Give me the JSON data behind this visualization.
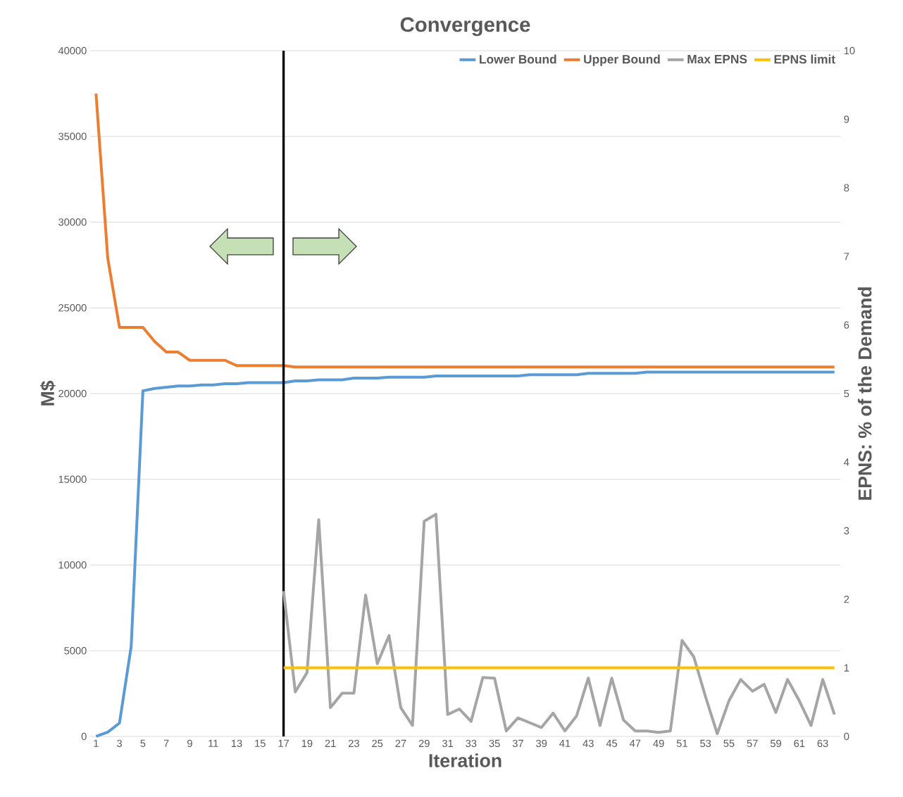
{
  "chart_data": {
    "type": "line",
    "title": "Convergence",
    "xlabel": "Iteration",
    "ylabel": "M$",
    "y2label": "EPNS: % of the Demand",
    "x": [
      1,
      2,
      3,
      4,
      5,
      6,
      7,
      8,
      9,
      10,
      11,
      12,
      13,
      14,
      15,
      16,
      17,
      18,
      19,
      20,
      21,
      22,
      23,
      24,
      25,
      26,
      27,
      28,
      29,
      30,
      31,
      32,
      33,
      34,
      35,
      36,
      37,
      38,
      39,
      40,
      41,
      42,
      43,
      44,
      45,
      46,
      47,
      48,
      49,
      50,
      51,
      52,
      53,
      54,
      55,
      56,
      57,
      58,
      59,
      60,
      61,
      62,
      63,
      64
    ],
    "xlim": [
      0.5,
      64.5
    ],
    "xticks": [
      1,
      3,
      5,
      7,
      9,
      11,
      13,
      15,
      17,
      19,
      21,
      23,
      25,
      27,
      29,
      31,
      33,
      35,
      37,
      39,
      41,
      43,
      45,
      47,
      49,
      51,
      53,
      55,
      57,
      59,
      61,
      63
    ],
    "ylim": [
      0,
      40000
    ],
    "yticks": [
      0,
      5000,
      10000,
      15000,
      20000,
      25000,
      30000,
      35000,
      40000
    ],
    "y2lim": [
      0,
      10
    ],
    "y2ticks": [
      0,
      1,
      2,
      3,
      4,
      5,
      6,
      7,
      8,
      9,
      10
    ],
    "grid": "y",
    "legend": "top right",
    "marker": "none",
    "line_style": "solid",
    "ref_lines": [
      {
        "axis": "x",
        "value": 17,
        "color": "#000000"
      }
    ],
    "series": [
      {
        "name": "Lower Bound",
        "color": "#5b9bd5",
        "values": [
          0,
          250,
          780,
          5250,
          20160,
          20300,
          20370,
          20440,
          20440,
          20500,
          20500,
          20570,
          20570,
          20640,
          20640,
          20640,
          20640,
          20740,
          20740,
          20800,
          20800,
          20800,
          20900,
          20900,
          20900,
          20950,
          20950,
          20950,
          20950,
          21030,
          21030,
          21030,
          21030,
          21030,
          21030,
          21030,
          21030,
          21100,
          21100,
          21100,
          21100,
          21100,
          21180,
          21180,
          21180,
          21180,
          21180,
          21250,
          21250,
          21250,
          21250,
          21250,
          21250,
          21250,
          21250,
          21250,
          21250,
          21250,
          21250,
          21250,
          21250,
          21250,
          21250,
          21250
        ]
      },
      {
        "name": "Upper Bound",
        "color": "#ed7d31",
        "values": [
          37500,
          27900,
          23860,
          23860,
          23860,
          23040,
          22420,
          22420,
          21940,
          21940,
          21940,
          21940,
          21630,
          21630,
          21630,
          21630,
          21630,
          21550,
          21550,
          21550,
          21550,
          21550,
          21550,
          21550,
          21550,
          21550,
          21550,
          21550,
          21550,
          21550,
          21550,
          21550,
          21550,
          21550,
          21550,
          21550,
          21550,
          21550,
          21550,
          21550,
          21550,
          21550,
          21550,
          21550,
          21550,
          21550,
          21550,
          21550,
          21550,
          21550,
          21550,
          21550,
          21550,
          21550,
          21550,
          21550,
          21550,
          21550,
          21550,
          21550,
          21550,
          21550,
          21550,
          21550
        ]
      },
      {
        "name": "Max EPNS",
        "color": "#a5a5a5",
        "axis": "y2",
        "values": [
          null,
          null,
          null,
          null,
          null,
          null,
          null,
          null,
          null,
          null,
          null,
          null,
          null,
          null,
          null,
          null,
          2.12,
          0.65,
          0.93,
          3.16,
          0.42,
          0.63,
          0.63,
          2.06,
          1.06,
          1.47,
          0.42,
          0.16,
          3.14,
          3.24,
          0.32,
          0.4,
          0.22,
          0.86,
          0.85,
          0.08,
          0.27,
          0.2,
          0.13,
          0.34,
          0.08,
          0.3,
          0.85,
          0.16,
          0.85,
          0.24,
          0.08,
          0.08,
          0.06,
          0.08,
          1.4,
          1.16,
          0.58,
          0.04,
          0.52,
          0.83,
          0.66,
          0.76,
          0.35,
          0.83,
          0.52,
          0.16,
          0.83,
          0.32
        ]
      },
      {
        "name": "EPNS limit",
        "color": "#ffc000",
        "axis": "y2",
        "values": [
          null,
          null,
          null,
          null,
          null,
          null,
          null,
          null,
          null,
          null,
          null,
          null,
          null,
          null,
          null,
          null,
          1,
          1,
          1,
          1,
          1,
          1,
          1,
          1,
          1,
          1,
          1,
          1,
          1,
          1,
          1,
          1,
          1,
          1,
          1,
          1,
          1,
          1,
          1,
          1,
          1,
          1,
          1,
          1,
          1,
          1,
          1,
          1,
          1,
          1,
          1,
          1,
          1,
          1,
          1,
          1,
          1,
          1,
          1,
          1,
          1,
          1,
          1,
          1
        ]
      }
    ]
  }
}
